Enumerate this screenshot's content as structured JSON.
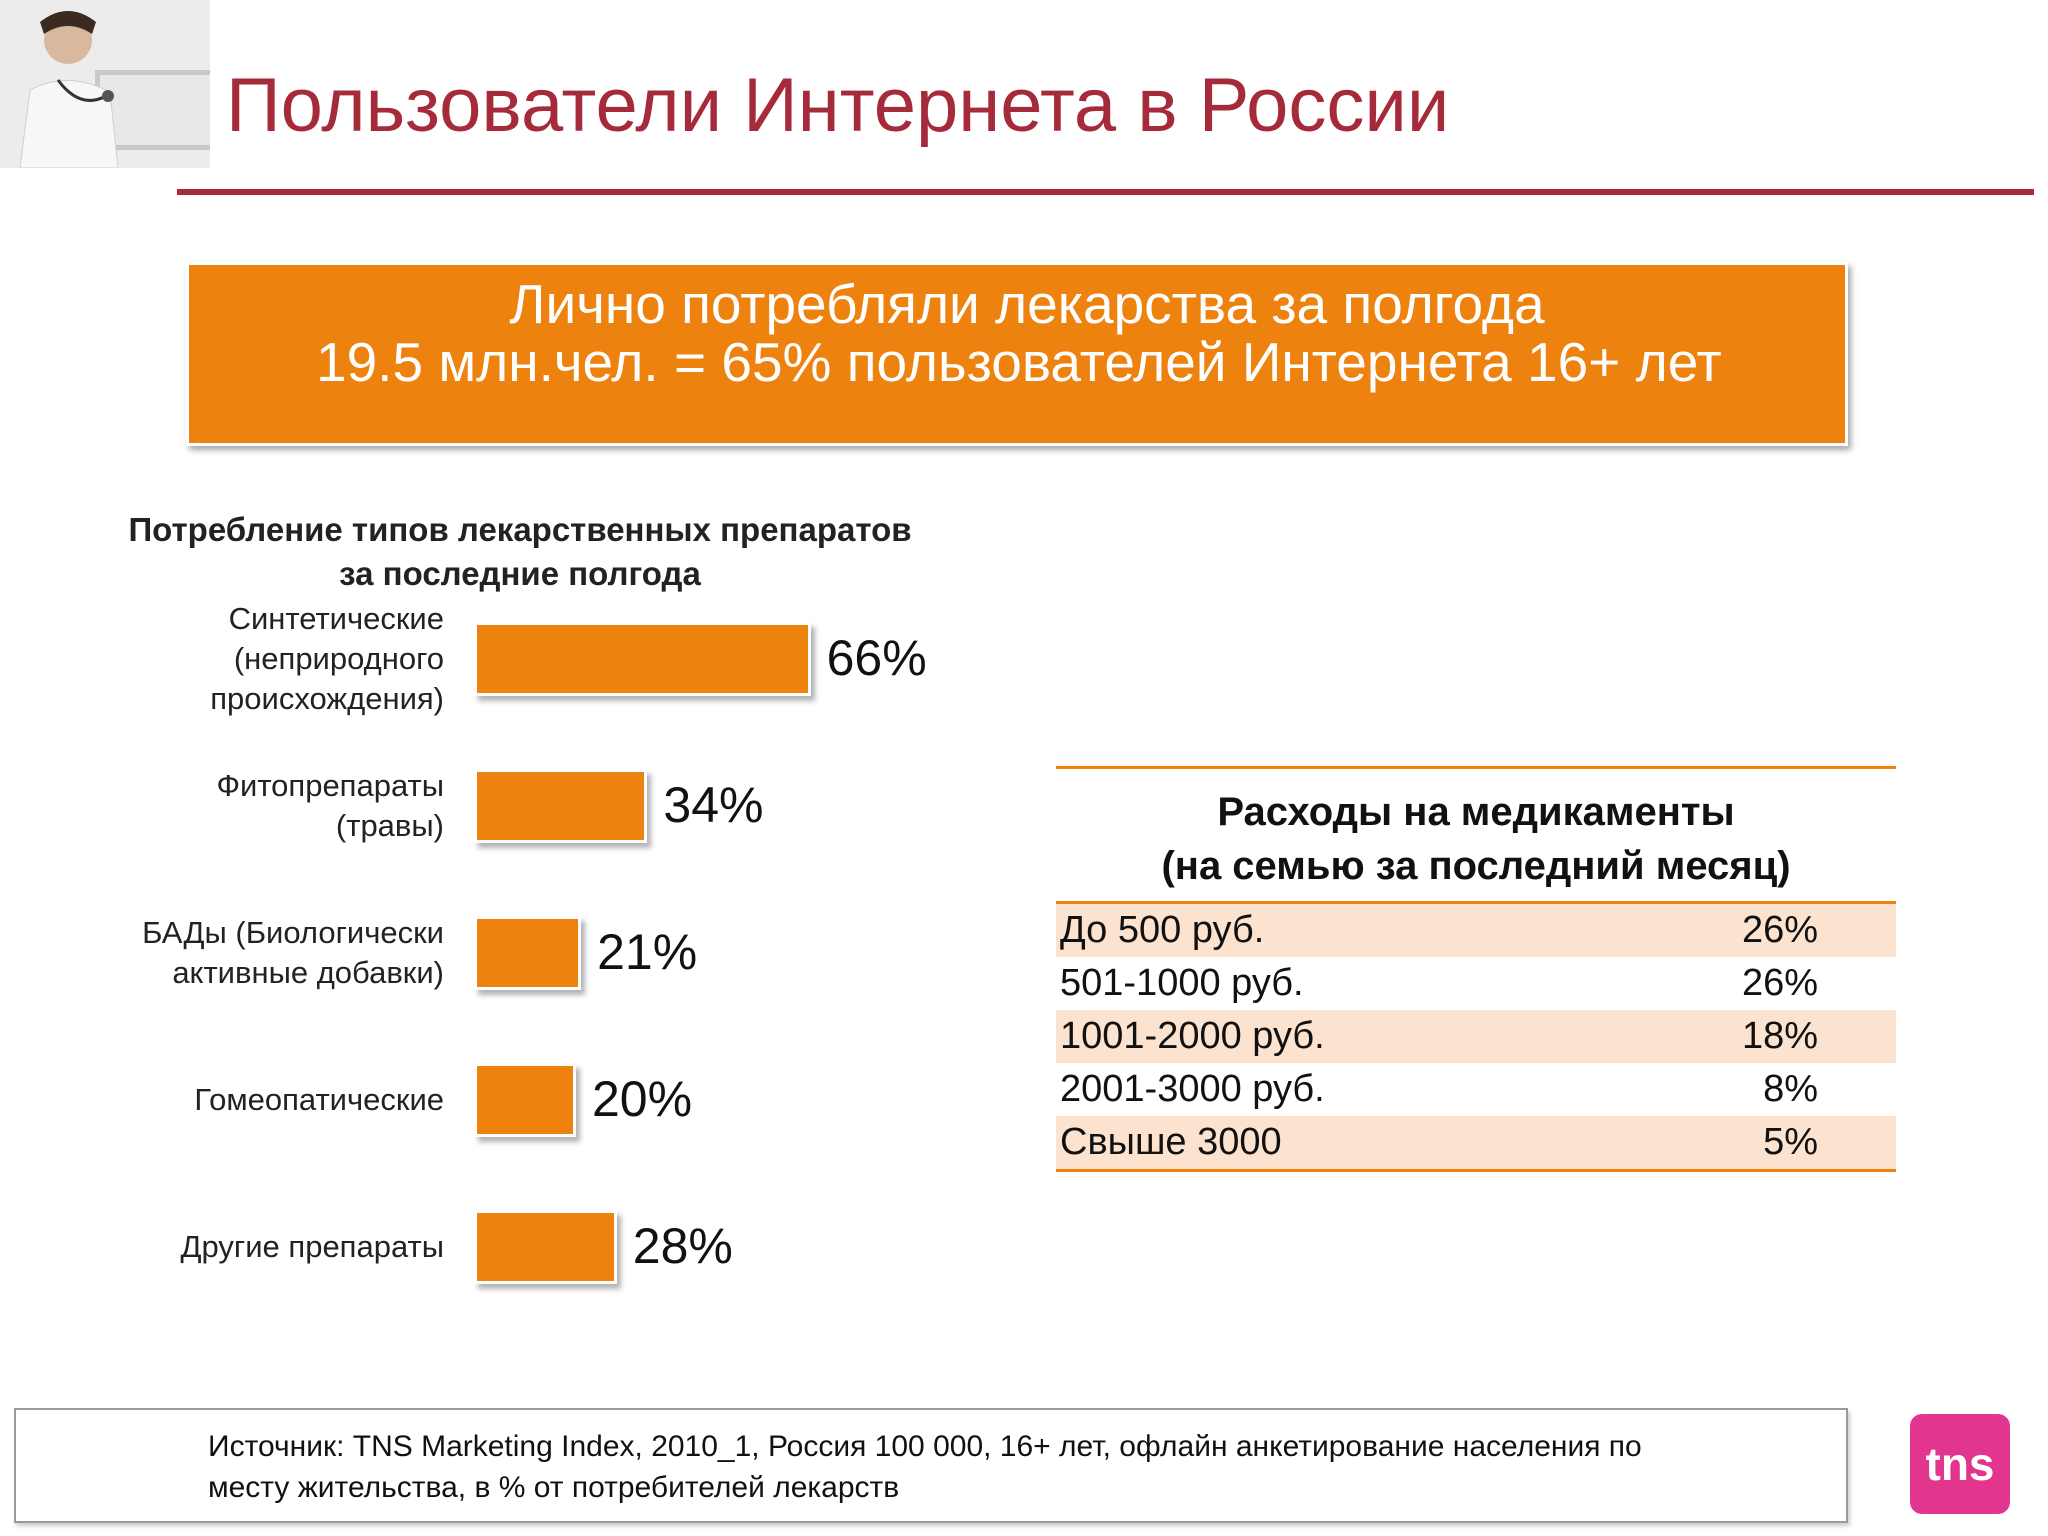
{
  "header": {
    "title": "Пользователи Интернета в России"
  },
  "banner": {
    "line1": "Лично потребляли лекарства за полгода",
    "line2": "19.5 млн.чел. =  65% пользователей Интернета 16+ лет"
  },
  "chart_data": {
    "type": "bar",
    "orientation": "horizontal",
    "title_line1": "Потребление типов лекарственных препаратов",
    "title_line2": "за последние полгода",
    "categories": [
      [
        "Синтетические",
        "(неприродного",
        "происхождения)"
      ],
      [
        "Фитопрепараты",
        "(травы)"
      ],
      [
        "БАДы (Биологически",
        "активные добавки)"
      ],
      [
        "Гомеопатические"
      ],
      [
        "Другие препараты"
      ]
    ],
    "values": [
      66,
      34,
      21,
      20,
      28
    ],
    "value_labels": [
      "66%",
      "34%",
      "21%",
      "20%",
      "28%"
    ],
    "unit": "%",
    "color": "#ee820f"
  },
  "spending_table": {
    "title_line1": "Расходы на медикаменты",
    "title_line2": "(на семью за последний месяц)",
    "rows": [
      {
        "label": "До 500 руб.",
        "value": "26%"
      },
      {
        "label": "501-1000 руб.",
        "value": "26%"
      },
      {
        "label": "1001-2000 руб.",
        "value": "18%"
      },
      {
        "label": "2001-3000 руб.",
        "value": "8%"
      },
      {
        "label": "Свыше 3000",
        "value": "5%"
      }
    ],
    "accent": "#ee820f",
    "shade": "#fbe3d0"
  },
  "footer": {
    "source_line1": "Источник: TNS Marketing Index, 2010_1, Россия 100 000, 16+ лет, офлайн анкетирование населения по",
    "source_line2": "месту жительства, в % от потребителей лекарств",
    "logo_text": "tns",
    "logo_color": "#e2358e"
  },
  "colors": {
    "title": "#a52a3a",
    "accent": "#ee820f"
  }
}
